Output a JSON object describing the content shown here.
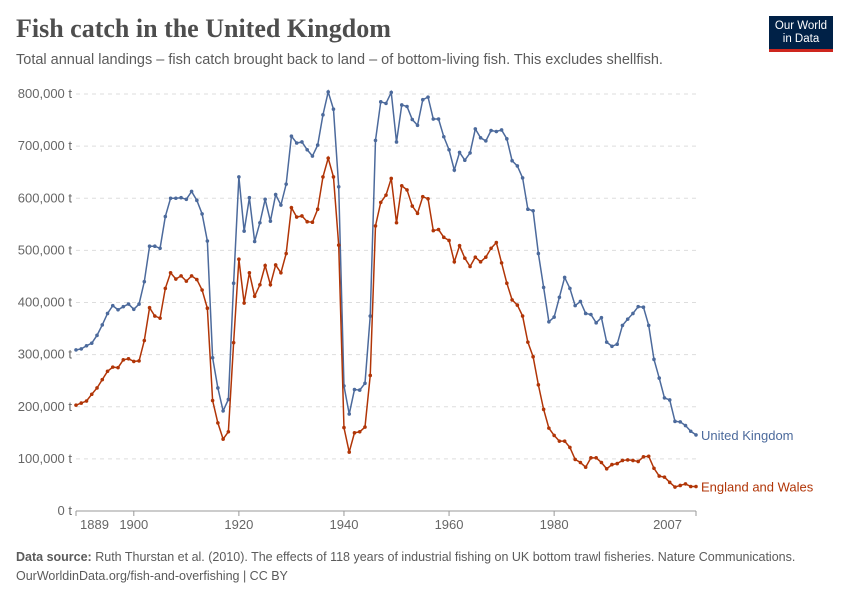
{
  "header": {
    "title": "Fish catch in the United Kingdom",
    "subtitle": "Total annual landings – fish catch brought back to land – of bottom-living fish. This excludes shellfish.",
    "logo_line1": "Our World",
    "logo_line2": "in Data"
  },
  "footer": {
    "source_label": "Data source:",
    "source_text": "Ruth Thurstan et al. (2010). The effects of 118 years of industrial fishing on UK bottom trawl fisheries. Nature Communications.",
    "link": "OurWorldinData.org/fish-and-overfishing | CC BY"
  },
  "chart_data": {
    "type": "line",
    "title": "Fish catch in the United Kingdom",
    "xlim": [
      1889,
      2007
    ],
    "ylim": [
      0,
      800000
    ],
    "x_ticks": [
      1889,
      1900,
      1920,
      1940,
      1960,
      1980,
      2007
    ],
    "y_ticks": [
      0,
      100000,
      200000,
      300000,
      400000,
      500000,
      600000,
      700000,
      800000
    ],
    "y_tick_labels": [
      "0 t",
      "100,000 t",
      "200,000 t",
      "300,000 t",
      "400,000 t",
      "500,000 t",
      "600,000 t",
      "700,000 t",
      "800,000 t"
    ],
    "grid": "horizontal dashed",
    "legend": "line-end labels",
    "x_start": 1889,
    "series": [
      {
        "name": "United Kingdom",
        "color": "#4c6a9c",
        "values": [
          309000,
          311000,
          317000,
          322000,
          337000,
          357000,
          379000,
          394000,
          386000,
          392000,
          397000,
          387000,
          397000,
          440000,
          508000,
          508000,
          504000,
          565000,
          600000,
          600000,
          601000,
          598000,
          613000,
          596000,
          570000,
          518000,
          294000,
          236000,
          192000,
          214000,
          437000,
          641000,
          537000,
          601000,
          517000,
          553000,
          598000,
          556000,
          607000,
          587000,
          627000,
          719000,
          706000,
          708000,
          693000,
          681000,
          702000,
          760000,
          804000,
          771000,
          622000,
          240000,
          186000,
          233000,
          232000,
          245000,
          374000,
          711000,
          785000,
          782000,
          803000,
          708000,
          779000,
          776000,
          751000,
          740000,
          789000,
          794000,
          752000,
          752000,
          718000,
          693000,
          654000,
          688000,
          673000,
          687000,
          733000,
          716000,
          710000,
          730000,
          728000,
          731000,
          714000,
          672000,
          662000,
          639000,
          579000,
          576000,
          494000,
          429000,
          363000,
          372000,
          410000,
          448000,
          427000,
          394000,
          402000,
          379000,
          377000,
          361000,
          371000,
          324000,
          316000,
          320000,
          356000,
          368000,
          379000,
          392000,
          391000,
          356000,
          291000,
          255000,
          217000,
          213000,
          172000,
          171000,
          164000,
          153000,
          146000
        ]
      },
      {
        "name": "England and Wales",
        "color": "#b13507",
        "values": [
          203000,
          207000,
          211000,
          224000,
          236000,
          252000,
          268000,
          276000,
          275000,
          290000,
          292000,
          287000,
          288000,
          327000,
          390000,
          374000,
          370000,
          427000,
          457000,
          445000,
          451000,
          441000,
          451000,
          444000,
          424000,
          389000,
          212000,
          169000,
          138000,
          152000,
          323000,
          483000,
          399000,
          457000,
          412000,
          434000,
          471000,
          434000,
          472000,
          457000,
          494000,
          582000,
          564000,
          566000,
          555000,
          554000,
          579000,
          641000,
          677000,
          641000,
          510000,
          160000,
          113000,
          150000,
          152000,
          161000,
          260000,
          547000,
          592000,
          606000,
          638000,
          553000,
          624000,
          616000,
          585000,
          571000,
          603000,
          599000,
          538000,
          540000,
          525000,
          519000,
          478000,
          509000,
          485000,
          469000,
          487000,
          478000,
          487000,
          504000,
          515000,
          476000,
          437000,
          405000,
          395000,
          374000,
          324000,
          296000,
          242000,
          195000,
          159000,
          145000,
          134000,
          134000,
          122000,
          99000,
          93000,
          84000,
          102000,
          102000,
          93000,
          81000,
          89000,
          91000,
          97000,
          98000,
          97000,
          95000,
          104000,
          105000,
          82000,
          67000,
          65000,
          55000,
          46000,
          49000,
          52000,
          47000,
          47000
        ]
      }
    ]
  }
}
